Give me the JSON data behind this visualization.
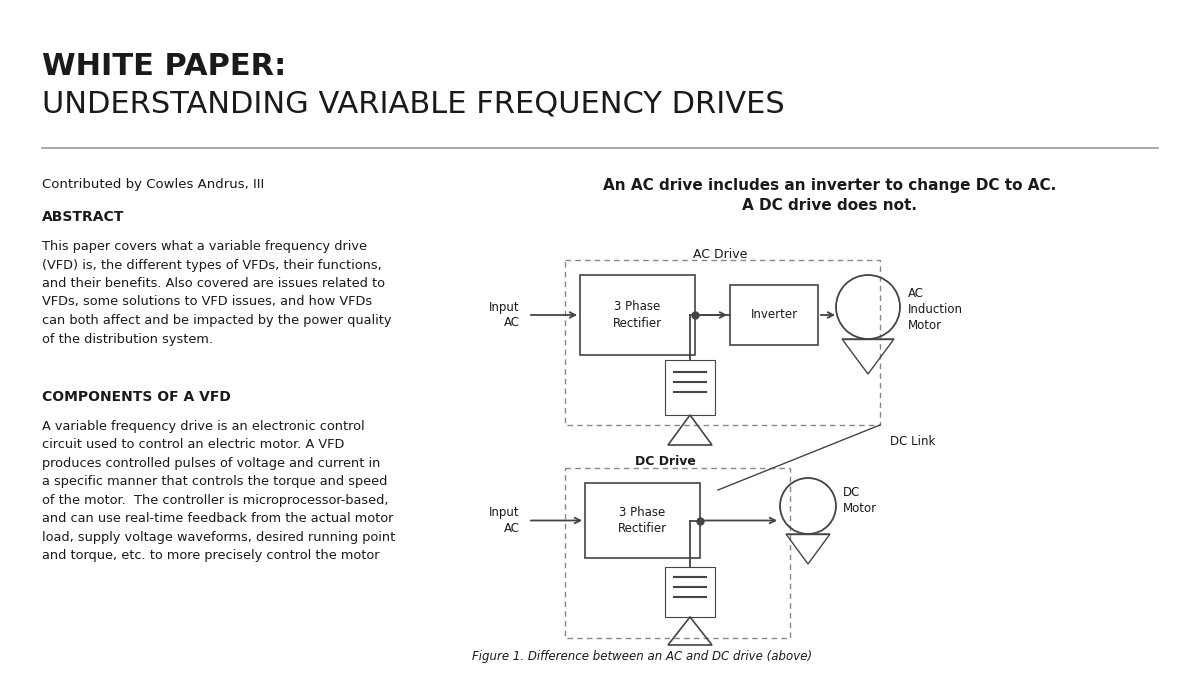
{
  "bg_color": "#ffffff",
  "title_line1": "WHITE PAPER:",
  "title_line2": "UNDERSTANDING VARIABLE FREQUENCY DRIVES",
  "contributor": "Contributed by Cowles Andrus, III",
  "abstract_heading": "ABSTRACT",
  "abstract_text": "This paper covers what a variable frequency drive\n(VFD) is, the different types of VFDs, their functions,\nand their benefits. Also covered are issues related to\nVFDs, some solutions to VFD issues, and how VFDs\ncan both affect and be impacted by the power quality\nof the distribution system.",
  "components_heading": "COMPONENTS OF A VFD",
  "components_text": "A variable frequency drive is an electronic control\ncircuit used to control an electric motor. A VFD\nproduces controlled pulses of voltage and current in\na specific manner that controls the torque and speed\nof the motor.  The controller is microprocessor-based,\nand can use real-time feedback from the actual motor\nload, supply voltage waveforms, desired running point\nand torque, etc. to more precisely control the motor",
  "diagram_title": "An AC drive includes an inverter to change DC to AC.\nA DC drive does not.",
  "ac_drive_label": "AC Drive",
  "dc_drive_label": "DC Drive",
  "figure_caption": "Figure 1. Difference between an AC and DC drive (above)",
  "text_color": "#1a1a1a",
  "diagram_color": "#444444",
  "box_color": "#555555"
}
